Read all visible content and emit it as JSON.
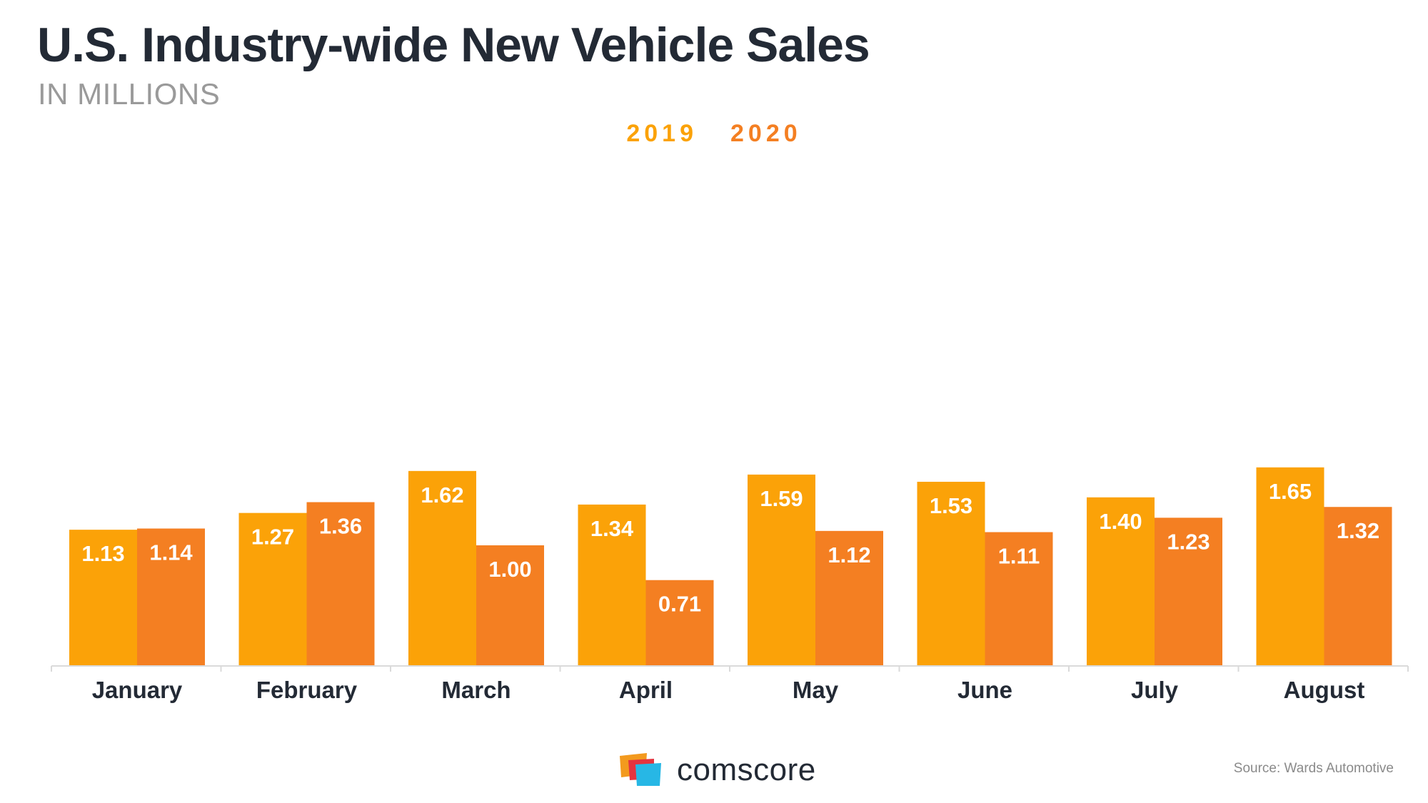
{
  "title": "U.S. Industry-wide New Vehicle Sales",
  "subtitle": "IN MILLIONS",
  "colors": {
    "series_2019": "#FBA208",
    "series_2020": "#F47F22",
    "title": "#232A35",
    "axis": "#DADADA",
    "label_text": "#FFFFFF"
  },
  "chart_data": {
    "type": "bar",
    "title": "U.S. Industry-wide New Vehicle Sales",
    "subtitle": "IN MILLIONS",
    "xlabel": "",
    "ylabel": "",
    "ylim": [
      0,
      1.65
    ],
    "grid": false,
    "legend_position": "top-center",
    "categories": [
      "January",
      "February",
      "March",
      "April",
      "May",
      "June",
      "July",
      "August"
    ],
    "series": [
      {
        "name": "2019",
        "values": [
          1.13,
          1.27,
          1.62,
          1.34,
          1.59,
          1.53,
          1.4,
          1.65
        ],
        "labels": [
          "1.13",
          "1.27",
          "1.62",
          "1.34",
          "1.59",
          "1.53",
          "1.40",
          "1.65"
        ]
      },
      {
        "name": "2020",
        "values": [
          1.14,
          1.36,
          1.0,
          0.71,
          1.12,
          1.11,
          1.23,
          1.32
        ],
        "labels": [
          "1.14",
          "1.36",
          "1.00",
          "0.71",
          "1.12",
          "1.11",
          "1.23",
          "1.32"
        ]
      }
    ]
  },
  "footer": {
    "logo_text": "comscore",
    "source": "Source: Wards Automotive"
  }
}
